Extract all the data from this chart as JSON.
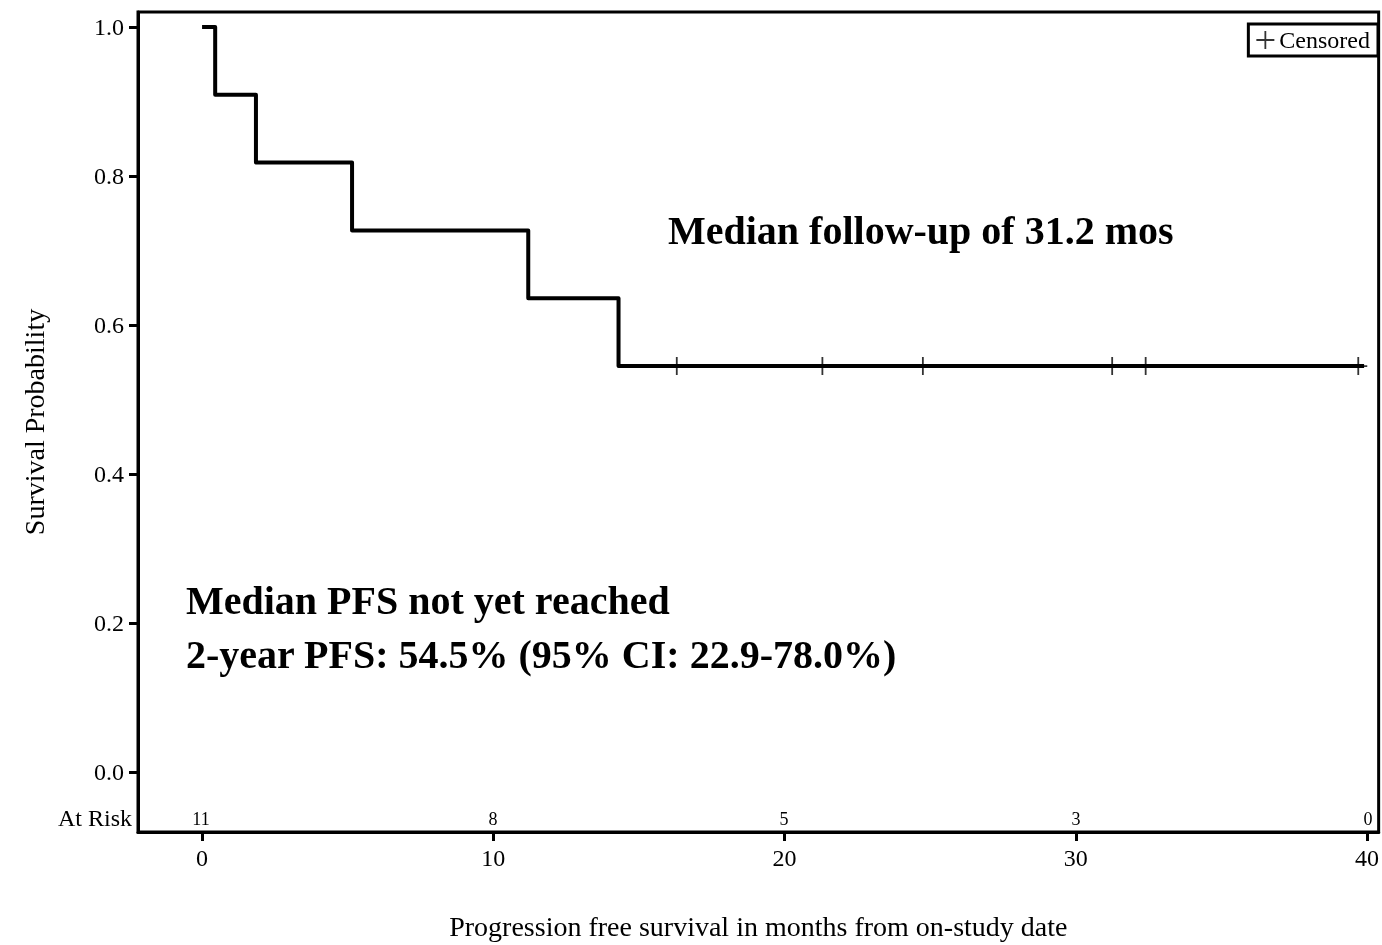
{
  "chart_data": {
    "type": "step",
    "xlabel": "Progression free survival in months from on-study date",
    "ylabel": "Survival Probability",
    "series": [
      {
        "color": "#000000",
        "marker": "none",
        "x": [
          0,
          0.45,
          1.85,
          5.15,
          11.2,
          14.3,
          39.9
        ],
        "values": [
          1.0,
          0.909,
          0.818,
          0.727,
          0.636,
          0.545,
          0.545
        ]
      },
      {
        "type": "scatter",
        "name": "Censored",
        "color": "#000000",
        "marker": "cross",
        "x": [
          16.3,
          21.3,
          24.75,
          31.25,
          32.4,
          39.7
        ],
        "values": [
          0.545,
          0.545,
          0.545,
          0.545,
          0.545,
          0.545
        ]
      }
    ],
    "xlim": [
      -2.2,
      40.4
    ],
    "xticks": [
      0,
      10,
      20,
      30,
      40
    ],
    "ylim": [
      -0.08,
      1.02
    ],
    "yticks": [
      {
        "value": 0,
        "label": "0.0"
      },
      0.2,
      0.4,
      0.6,
      0.8,
      {
        "value": 1,
        "label": "1.0"
      }
    ],
    "legend": "top right",
    "annotations": [
      "Median follow-up of 31.2 mos",
      "Median PFS not yet reached",
      "2-year PFS: 54.5% (95% CI: 22.9-78.0%)",
      "At Risk",
      "11",
      "8",
      "5",
      "3",
      "0"
    ]
  }
}
